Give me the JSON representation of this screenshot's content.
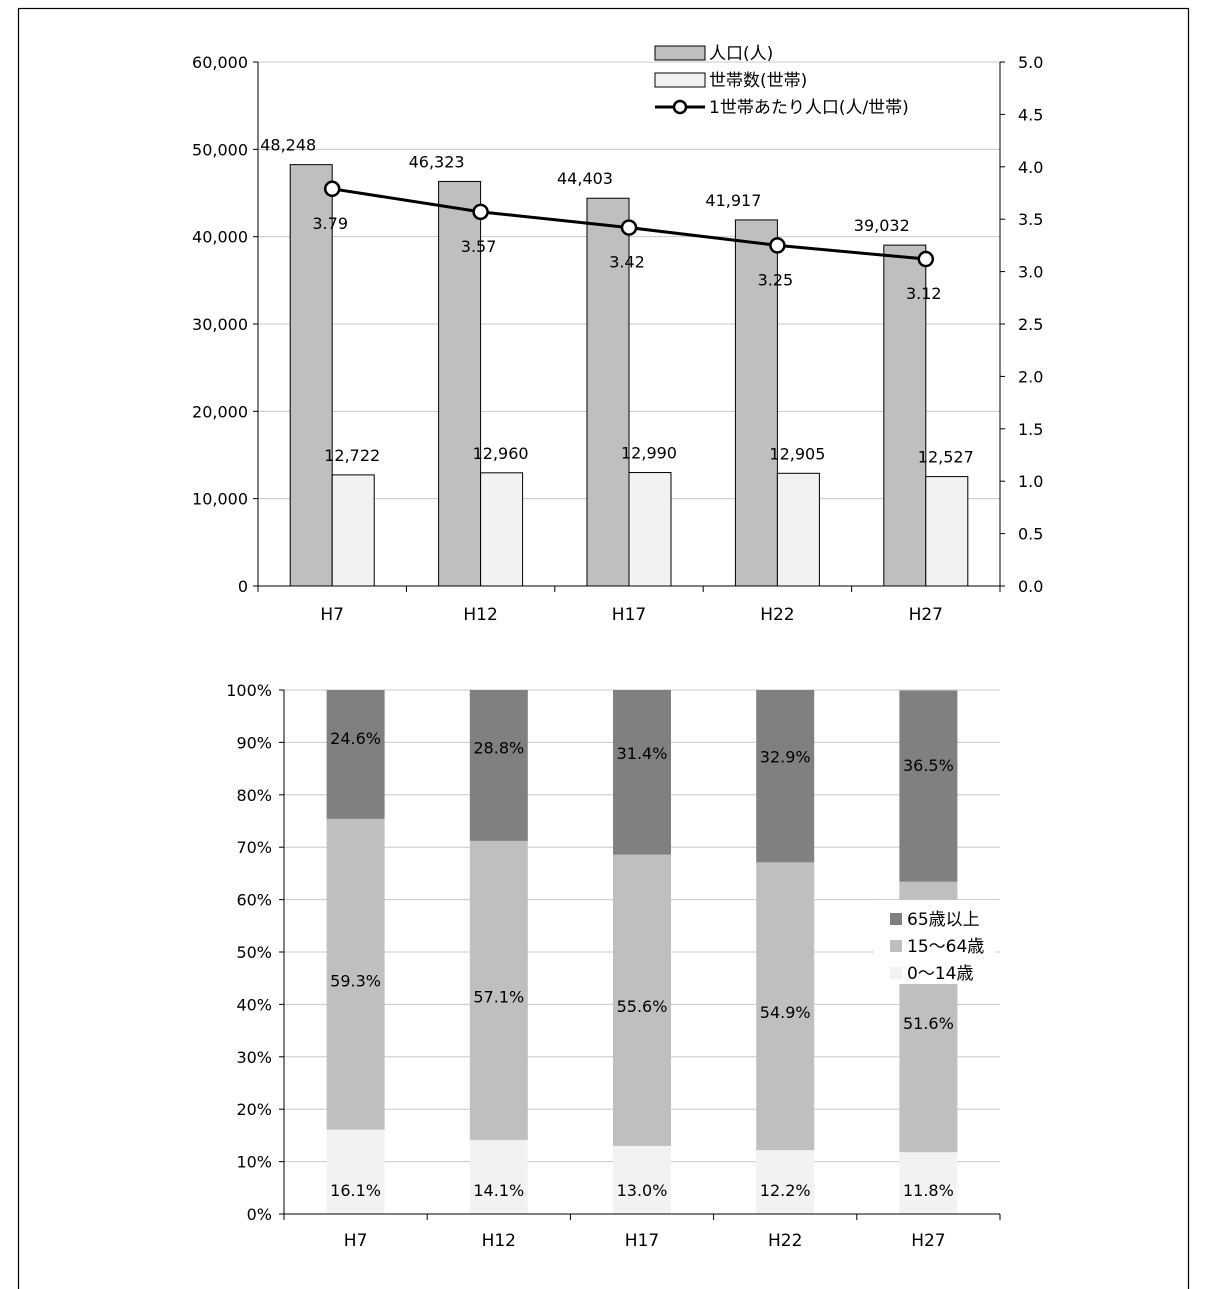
{
  "chart_data": [
    {
      "type": "bar",
      "categories": [
        "H7",
        "H12",
        "H17",
        "H22",
        "H27"
      ],
      "series": [
        {
          "name": "人口(人)",
          "axis": "left",
          "values": [
            48248,
            46323,
            44403,
            41917,
            39032
          ],
          "labels": [
            "48,248",
            "46,323",
            "44,403",
            "41,917",
            "39,032"
          ],
          "color": "#bfbfbf"
        },
        {
          "name": "世帯数(世帯)",
          "axis": "left",
          "values": [
            12722,
            12960,
            12990,
            12905,
            12527
          ],
          "labels": [
            "12,722",
            "12,960",
            "12,990",
            "12,905",
            "12,527"
          ],
          "color": "#f2f2f2"
        },
        {
          "name": "1世帯あたり人口(人/世帯)",
          "axis": "right",
          "type": "line",
          "values": [
            3.79,
            3.57,
            3.42,
            3.25,
            3.12
          ],
          "labels": [
            "3.79",
            "3.57",
            "3.42",
            "3.25",
            "3.12"
          ],
          "color": "#000000"
        }
      ],
      "left_axis": {
        "ylim": [
          0,
          60000
        ],
        "ticks": [
          "0",
          "10,000",
          "20,000",
          "30,000",
          "40,000",
          "50,000",
          "60,000"
        ]
      },
      "right_axis": {
        "ylim": [
          0,
          5
        ],
        "ticks": [
          "0.0",
          "0.5",
          "1.0",
          "1.5",
          "2.0",
          "2.5",
          "3.0",
          "3.5",
          "4.0",
          "4.5",
          "5.0"
        ]
      },
      "grid": true,
      "legend": "top-right"
    },
    {
      "type": "bar",
      "stacked": true,
      "categories": [
        "H7",
        "H12",
        "H17",
        "H22",
        "H27"
      ],
      "series": [
        {
          "name": "0〜14歳",
          "values": [
            16.1,
            14.1,
            13.0,
            12.2,
            11.8
          ],
          "labels": [
            "16.1%",
            "14.1%",
            "13.0%",
            "12.2%",
            "11.8%"
          ],
          "color": "#f2f2f2"
        },
        {
          "name": "15〜64歳",
          "values": [
            59.3,
            57.1,
            55.6,
            54.9,
            51.6
          ],
          "labels": [
            "59.3%",
            "57.1%",
            "55.6%",
            "54.9%",
            "51.6%"
          ],
          "color": "#bfbfbf"
        },
        {
          "name": "65歳以上",
          "values": [
            24.6,
            28.8,
            31.4,
            32.9,
            36.5
          ],
          "labels": [
            "24.6%",
            "28.8%",
            "31.4%",
            "32.9%",
            "36.5%"
          ],
          "color": "#808080"
        }
      ],
      "ylim": [
        0,
        100
      ],
      "ticks": [
        "0%",
        "10%",
        "20%",
        "30%",
        "40%",
        "50%",
        "60%",
        "70%",
        "80%",
        "90%",
        "100%"
      ],
      "grid": true,
      "legend": "right"
    }
  ]
}
